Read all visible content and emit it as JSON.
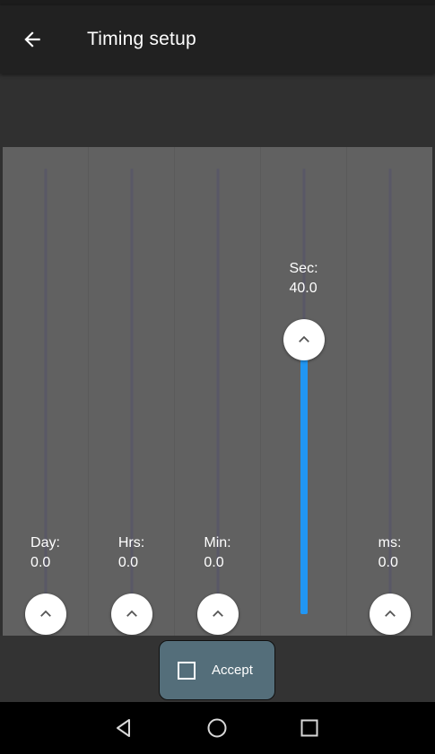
{
  "app_bar": {
    "title": "Timing setup",
    "back_icon": "arrow-left-icon"
  },
  "sliders": [
    {
      "unit": "Day:",
      "value": "0.0",
      "level": 0.0
    },
    {
      "unit": "Hrs:",
      "value": "0.0",
      "level": 0.0
    },
    {
      "unit": "Min:",
      "value": "0.0",
      "level": 0.0
    },
    {
      "unit": "Sec:",
      "value": "40.0",
      "level": 0.68
    },
    {
      "unit": "ms:",
      "value": "0.0",
      "level": 0.0
    }
  ],
  "accept": {
    "label": "Accept",
    "checked": false
  },
  "colors": {
    "accent": "#2196f3",
    "panel": "#616161",
    "button": "#546e7a"
  },
  "nav": {
    "back_icon": "triangle-back-icon",
    "home_icon": "circle-home-icon",
    "recents_icon": "square-recents-icon"
  }
}
